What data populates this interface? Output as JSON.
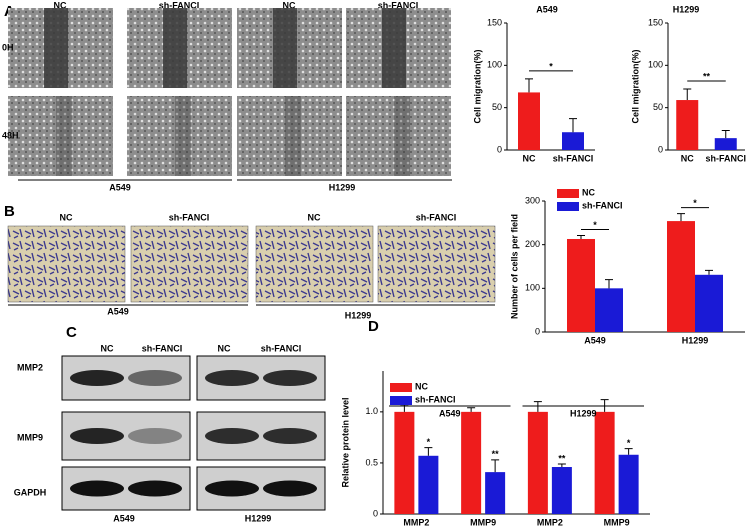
{
  "panel_labels": [
    "A",
    "B",
    "C",
    "D"
  ],
  "panel_a": {
    "columns": [
      "NC",
      "sh-FANCI",
      "NC",
      "sh-FANCI"
    ],
    "rows": [
      "0H",
      "48H"
    ],
    "groups": [
      "A549",
      "H1299"
    ]
  },
  "panel_b": {
    "columns": [
      "NC",
      "sh-FANCI",
      "NC",
      "sh-FANCI"
    ],
    "groups": [
      "A549",
      "H1299"
    ]
  },
  "panel_c": {
    "columns": [
      "NC",
      "sh-FANCI",
      "NC",
      "sh-FANCI"
    ],
    "rows": [
      "MMP2",
      "MMP9",
      "GAPDH"
    ],
    "groups": [
      "A549",
      "H1299"
    ]
  },
  "chart_data": [
    {
      "type": "bar",
      "title": "A549",
      "y_label": "Cell migration(%)",
      "categories": [
        "NC",
        "sh-FANCI"
      ],
      "values": [
        68,
        21
      ],
      "errors": [
        16,
        16
      ],
      "colors": [
        "#ee1c1c",
        "#1a1ad6"
      ],
      "ylim": [
        0,
        150
      ],
      "yticks": [
        0,
        50,
        100,
        150
      ],
      "annotations": [
        "*"
      ]
    },
    {
      "type": "bar",
      "title": "H1299",
      "y_label": "Cell migration(%)",
      "categories": [
        "NC",
        "sh-FANCI"
      ],
      "values": [
        59,
        14
      ],
      "errors": [
        13,
        9
      ],
      "colors": [
        "#ee1c1c",
        "#1a1ad6"
      ],
      "ylim": [
        0,
        150
      ],
      "yticks": [
        0,
        50,
        100,
        150
      ],
      "annotations": [
        "**"
      ]
    },
    {
      "type": "bar",
      "y_label": "Number of cells per field",
      "categories": [
        "A549",
        "H1299"
      ],
      "series": [
        {
          "name": "NC",
          "color": "#ee1c1c",
          "values": [
            213,
            254
          ],
          "errors": [
            8,
            17
          ]
        },
        {
          "name": "sh-FANCI",
          "color": "#1a1ad6",
          "values": [
            100,
            131
          ],
          "errors": [
            20,
            10
          ]
        }
      ],
      "ylim": [
        0,
        300
      ],
      "yticks": [
        0,
        100,
        200,
        300
      ],
      "annotations": [
        "*",
        "*"
      ],
      "legend": "top-left"
    },
    {
      "type": "bar",
      "y_label": "Relative protein level",
      "categories": [
        "MMP2",
        "MMP9",
        "MMP2",
        "MMP9"
      ],
      "group_labels": [
        "A549",
        "H1299"
      ],
      "series": [
        {
          "name": "NC",
          "color": "#ee1c1c",
          "values": [
            1.0,
            1.0,
            1.0,
            1.0
          ],
          "errors": [
            0.07,
            0.04,
            0.1,
            0.12
          ]
        },
        {
          "name": "sh-FANCI",
          "color": "#1a1ad6",
          "values": [
            0.57,
            0.41,
            0.46,
            0.58
          ],
          "errors": [
            0.08,
            0.12,
            0.03,
            0.06
          ]
        }
      ],
      "ylim": [
        0,
        1.4
      ],
      "yticks": [
        0,
        0.5,
        {
          "value": 1,
          "label": "1.0"
        }
      ],
      "annotations": [
        "*",
        "**",
        "**",
        "*"
      ],
      "legend": "top-left"
    }
  ]
}
